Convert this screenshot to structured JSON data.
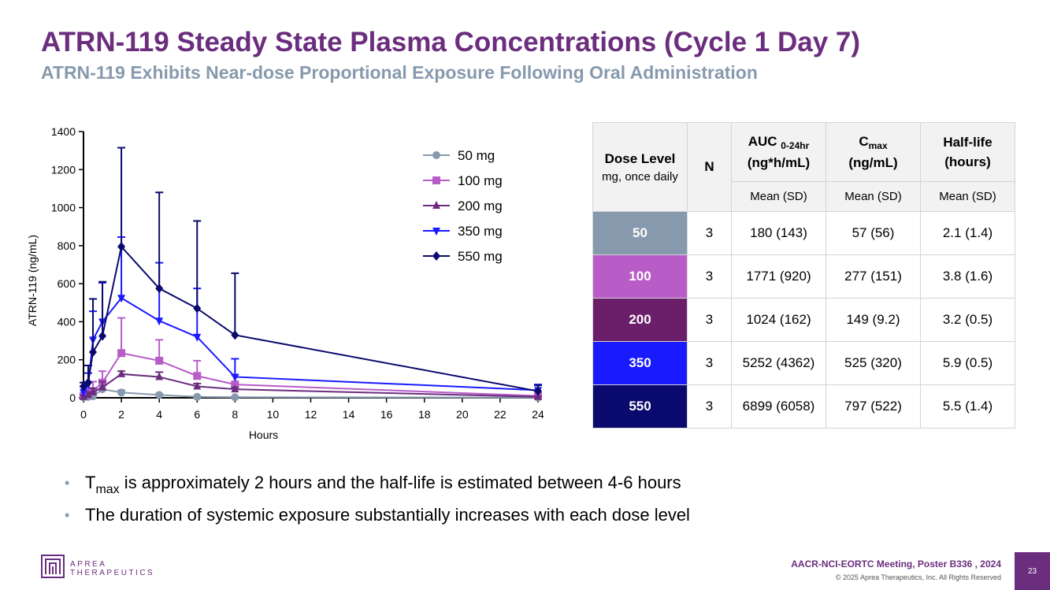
{
  "header": {
    "title": "ATRN-119 Steady State Plasma Concentrations (Cycle 1 Day 7)",
    "subtitle": "ATRN-119 Exhibits Near-dose Proportional Exposure Following Oral Administration"
  },
  "chart_data": {
    "type": "line",
    "title": "",
    "xlabel": "Hours",
    "ylabel": "ATRN-119 (ng/mL)",
    "xlim": [
      0,
      24
    ],
    "ylim": [
      0,
      1400
    ],
    "xticks": [
      0,
      2,
      4,
      6,
      8,
      10,
      12,
      14,
      16,
      18,
      20,
      22,
      24
    ],
    "yticks": [
      0,
      200,
      400,
      600,
      800,
      1000,
      1200,
      1400
    ],
    "legend_position": "top-right",
    "series": [
      {
        "name": "50 mg",
        "color": "#8799ad",
        "marker": "circle",
        "x": [
          0,
          0.25,
          0.5,
          1,
          2,
          4,
          6,
          8,
          24
        ],
        "y": [
          2,
          5,
          8,
          45,
          28,
          15,
          5,
          3,
          1
        ],
        "err": [
          5,
          10,
          20,
          30,
          12,
          6,
          3,
          2,
          1
        ]
      },
      {
        "name": "100 mg",
        "color": "#b85cc8",
        "marker": "square",
        "x": [
          0,
          0.25,
          0.5,
          1,
          2,
          4,
          6,
          8,
          24
        ],
        "y": [
          10,
          20,
          35,
          80,
          235,
          195,
          115,
          70,
          10
        ],
        "err": [
          15,
          25,
          50,
          60,
          185,
          110,
          80,
          50,
          8
        ]
      },
      {
        "name": "200 mg",
        "color": "#6b2d7e",
        "marker": "triangle-up",
        "x": [
          0,
          0.25,
          0.5,
          1,
          2,
          4,
          6,
          8,
          24
        ],
        "y": [
          5,
          15,
          30,
          55,
          125,
          110,
          60,
          45,
          5
        ],
        "err": [
          8,
          15,
          20,
          30,
          15,
          25,
          15,
          10,
          3
        ]
      },
      {
        "name": "350 mg",
        "color": "#1a1aff",
        "marker": "triangle-down",
        "x": [
          0,
          0.25,
          0.5,
          1,
          2,
          4,
          6,
          8,
          24
        ],
        "y": [
          30,
          70,
          305,
          400,
          525,
          405,
          320,
          110,
          40
        ],
        "err": [
          30,
          60,
          150,
          205,
          320,
          305,
          255,
          95,
          30
        ]
      },
      {
        "name": "550 mg",
        "color": "#0a0a6e",
        "marker": "diamond",
        "x": [
          0,
          0.25,
          0.5,
          1,
          2,
          4,
          6,
          8,
          24
        ],
        "y": [
          60,
          80,
          240,
          325,
          795,
          575,
          470,
          330,
          35
        ],
        "err": [
          20,
          90,
          280,
          285,
          520,
          505,
          460,
          325,
          30
        ]
      }
    ]
  },
  "table": {
    "headers": {
      "dose_level": "Dose Level",
      "dose_sub": "mg, once daily",
      "n": "N",
      "auc_main": "AUC",
      "auc_sub": "0-24hr",
      "auc_unit": "(ng*h/mL)",
      "cmax_main": "C",
      "cmax_sub": "max",
      "cmax_unit": "(ng/mL)",
      "halflife_main": "Half-life",
      "halflife_unit": "(hours)",
      "mean_sd": "Mean (SD)"
    },
    "rows": [
      {
        "dose": "50",
        "color": "#8799ad",
        "n": "3",
        "auc": "180 (143)",
        "cmax": "57 (56)",
        "half_life": "2.1 (1.4)"
      },
      {
        "dose": "100",
        "color": "#b85cc8",
        "n": "3",
        "auc": "1771 (920)",
        "cmax": "277 (151)",
        "half_life": "3.8 (1.6)"
      },
      {
        "dose": "200",
        "color": "#6b1f6b",
        "n": "3",
        "auc": "1024 (162)",
        "cmax": "149 (9.2)",
        "half_life": "3.2 (0.5)"
      },
      {
        "dose": "350",
        "color": "#1a1aff",
        "n": "3",
        "auc": "5252 (4362)",
        "cmax": "525 (320)",
        "half_life": "5.9 (0.5)"
      },
      {
        "dose": "550",
        "color": "#0a0a6e",
        "n": "3",
        "auc": "6899 (6058)",
        "cmax": "797 (522)",
        "half_life": "5.5 (1.4)"
      }
    ]
  },
  "bullets": {
    "b1_pre": "T",
    "b1_sub": "max",
    "b1_post": " is approximately 2 hours and the half-life is estimated between 4-6 hours",
    "b2": "The duration of systemic exposure substantially increases with each dose level"
  },
  "footer": {
    "logo_line1": "APREA",
    "logo_line2": "THERAPEUTICS",
    "meeting": "AACR-NCI-EORTC Meeting, Poster B336 , 2024",
    "copyright": "© 2025 Aprea Therapeutics, Inc. All Rights Reserved",
    "page_number": "23"
  }
}
